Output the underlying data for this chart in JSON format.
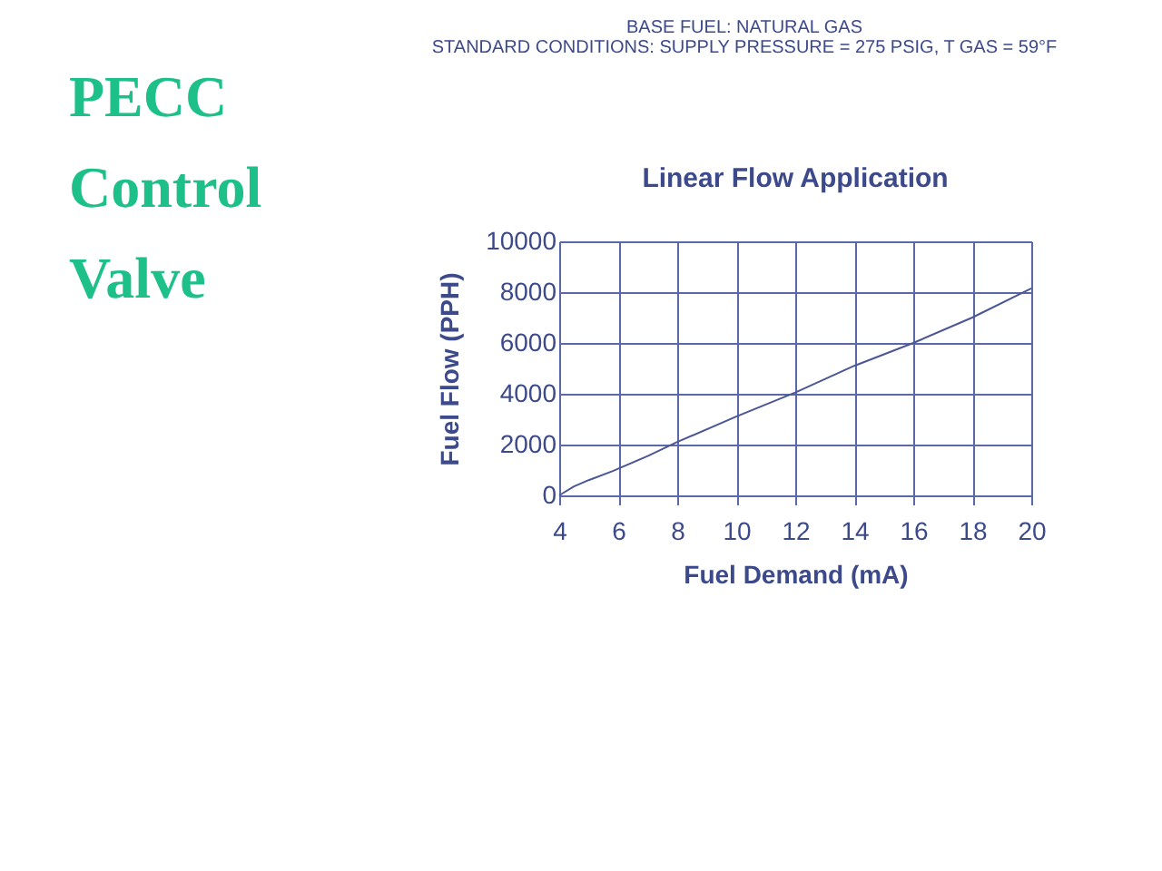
{
  "chart_data": {
    "type": "line",
    "title": "Linear Flow Application",
    "xlabel": "Fuel Demand (mA)",
    "ylabel": "Fuel Flow (PPH)",
    "annotations": [
      "BASE FUEL: NATURAL GAS",
      "STANDARD CONDITIONS: SUPPLY PRESSURE = 275 PSIG, T GAS = 59°F",
      "PECC Control Valve"
    ],
    "x": [
      4,
      4.5,
      5,
      5.8,
      7,
      8,
      10,
      12,
      14,
      16,
      18,
      20
    ],
    "series": [
      {
        "color": "#4a5696",
        "values": [
          0,
          350,
          600,
          950,
          1550,
          2100,
          3100,
          4050,
          5100,
          6000,
          7000,
          8150
        ]
      }
    ],
    "xlim": [
      4,
      20
    ],
    "xticks": [
      4,
      6,
      8,
      10,
      12,
      14,
      16,
      18,
      20
    ],
    "ylim": [
      0,
      10000
    ],
    "yticks": [
      0,
      2000,
      4000,
      6000,
      8000,
      10000
    ],
    "grid": true,
    "legend": false,
    "marker": "none",
    "line_style": "solid"
  }
}
